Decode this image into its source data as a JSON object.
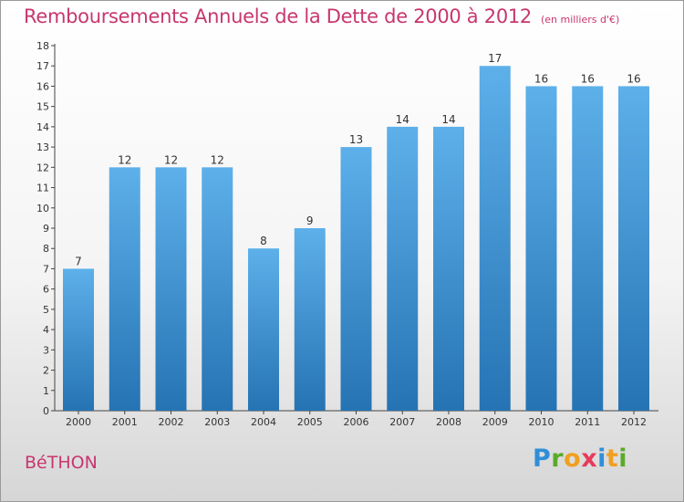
{
  "title": "Remboursements Annuels de la Dette de 2000 à 2012",
  "subtitle": "(en milliers d'€)",
  "commune": "BéTHON",
  "logo": {
    "text": "Proxiti"
  },
  "colors": {
    "title": "#c8366e",
    "bar_top": "#5db0ea",
    "bar_bottom": "#2673b3",
    "axis": "#444444"
  },
  "chart_data": {
    "type": "bar",
    "title": "Remboursements Annuels de la Dette de 2000 à 2012",
    "subtitle": "(en milliers d'€)",
    "xlabel": "",
    "ylabel": "",
    "categories": [
      "2000",
      "2001",
      "2002",
      "2003",
      "2004",
      "2005",
      "2006",
      "2007",
      "2008",
      "2009",
      "2010",
      "2011",
      "2012"
    ],
    "values": [
      7,
      12,
      12,
      12,
      8,
      9,
      13,
      14,
      14,
      17,
      16,
      16,
      16
    ],
    "ylim": [
      0,
      18
    ],
    "yticks": [
      0,
      1,
      2,
      3,
      4,
      5,
      6,
      7,
      8,
      9,
      10,
      11,
      12,
      13,
      14,
      15,
      16,
      17,
      18
    ],
    "grid": false,
    "legend": "none"
  }
}
